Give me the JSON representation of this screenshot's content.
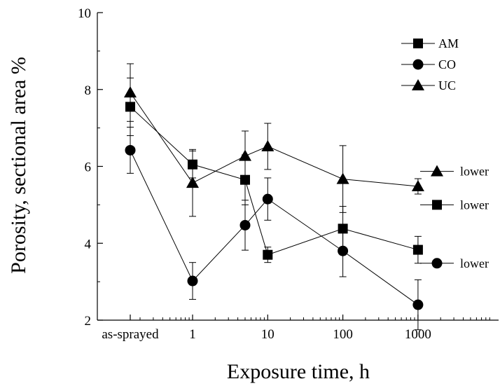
{
  "chart_data": {
    "type": "line",
    "xlabel": "Exposure time, h",
    "ylabel": "Porosity, sectional area %",
    "x_scale": "log",
    "x_tick_labels": [
      "as-sprayed",
      "1",
      "10",
      "100",
      "1000"
    ],
    "ylim": [
      2,
      10
    ],
    "y_ticks": [
      2,
      4,
      6,
      8,
      10
    ],
    "grid": false,
    "legend_position": "top-right",
    "series": [
      {
        "name": "AM",
        "marker": "square",
        "points": [
          {
            "x": "as-sprayed",
            "y": 7.55,
            "err": 0.75
          },
          {
            "x": 1,
            "y": 6.05,
            "err": 0.35
          },
          {
            "x": 5,
            "y": 5.65,
            "err": 0.65
          },
          {
            "x": 10,
            "y": 3.7,
            "err": 0.2
          },
          {
            "x": 100,
            "y": 4.38,
            "err": 0.58
          },
          {
            "x": 1000,
            "y": 3.83,
            "err": 0.35
          }
        ]
      },
      {
        "name": "CO",
        "marker": "circle",
        "points": [
          {
            "x": "as-sprayed",
            "y": 6.42,
            "err": 0.6
          },
          {
            "x": 1,
            "y": 3.02,
            "err": 0.48
          },
          {
            "x": 5,
            "y": 4.47,
            "err": 0.65
          },
          {
            "x": 10,
            "y": 5.15,
            "err": 0.55
          },
          {
            "x": 100,
            "y": 3.8,
            "err": 0.67
          },
          {
            "x": 1000,
            "y": 2.4,
            "err": 0.65
          }
        ]
      },
      {
        "name": "UC",
        "marker": "triangle",
        "points": [
          {
            "x": "as-sprayed",
            "y": 7.92,
            "err": 0.75
          },
          {
            "x": 1,
            "y": 5.57,
            "err": 0.87
          },
          {
            "x": 5,
            "y": 6.27,
            "err": 0.65
          },
          {
            "x": 10,
            "y": 6.52,
            "err": 0.6
          },
          {
            "x": 100,
            "y": 5.67,
            "err": 0.87
          },
          {
            "x": 1000,
            "y": 5.48,
            "err": 0.2
          }
        ]
      }
    ],
    "annotations": [
      {
        "text": "lower",
        "marker": "triangle",
        "y": 5.87
      },
      {
        "text": "lower",
        "marker": "square",
        "y": 5.0
      },
      {
        "text": "lower",
        "marker": "circle",
        "y": 3.48
      }
    ]
  }
}
